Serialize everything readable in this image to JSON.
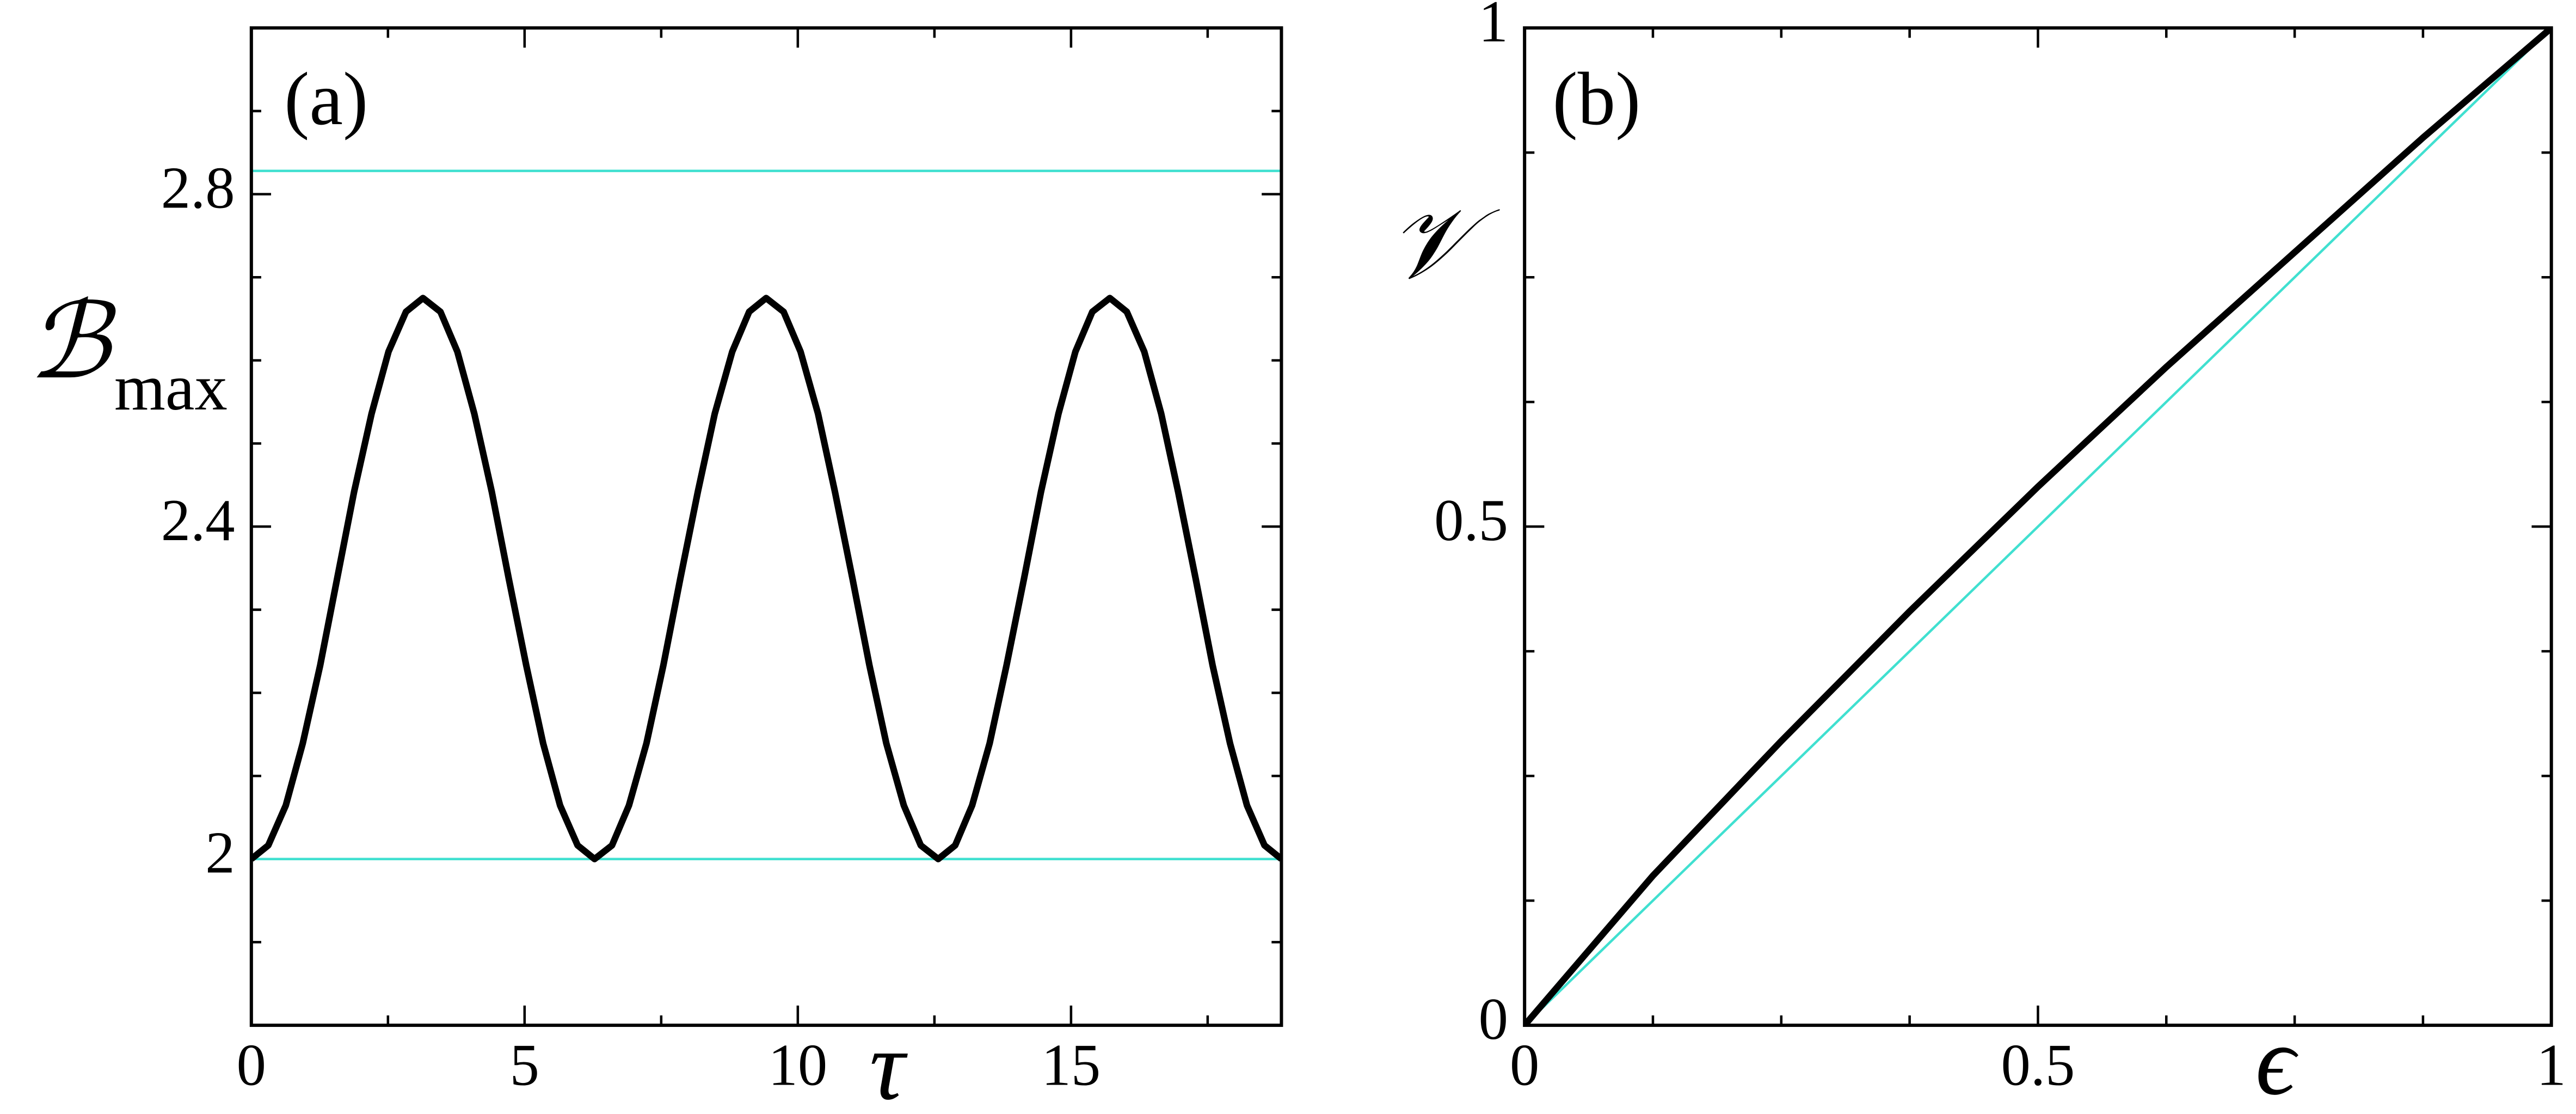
{
  "chart_data": [
    {
      "type": "line",
      "panel_label": "(a)",
      "xlabel": "τ",
      "ylabel": "ℬ",
      "ylabel_sub": "max",
      "xlim": [
        0,
        18.85
      ],
      "ylim": [
        1.8,
        3.0
      ],
      "xticks": [
        0,
        5,
        10,
        15
      ],
      "yticks": [
        2.0,
        2.4,
        2.8
      ],
      "xminorticks": [
        2.5,
        7.5,
        12.5,
        17.5
      ],
      "yminorticks": [
        1.9,
        2.1,
        2.2,
        2.3,
        2.5,
        2.6,
        2.7,
        2.9
      ],
      "series": [
        {
          "color": "#40e0d0",
          "width": 1.5,
          "x": [
            0,
            18.85
          ],
          "values": [
            2.828,
            2.828
          ]
        },
        {
          "color": "#40e0d0",
          "width": 1.5,
          "x": [
            0,
            18.85
          ],
          "values": [
            2.0,
            2.0
          ]
        },
        {
          "color": "#000000",
          "width": 4,
          "x": [
            0,
            0.31,
            0.63,
            0.94,
            1.26,
            1.57,
            1.88,
            2.2,
            2.51,
            2.83,
            3.14,
            3.46,
            3.77,
            4.08,
            4.4,
            4.71,
            5.03,
            5.34,
            5.65,
            5.97,
            6.28,
            6.6,
            6.91,
            7.23,
            7.54,
            7.85,
            8.17,
            8.48,
            8.8,
            9.11,
            9.42,
            9.74,
            10.05,
            10.37,
            10.68,
            11.0,
            11.31,
            11.62,
            11.94,
            12.25,
            12.57,
            12.88,
            13.19,
            13.51,
            13.82,
            14.14,
            14.45,
            14.77,
            15.08,
            15.39,
            15.71,
            16.02,
            16.34,
            16.65,
            16.96,
            17.28,
            17.59,
            17.91,
            18.22,
            18.54,
            18.85
          ],
          "values": [
            2.0,
            2.0165,
            2.0645,
            2.1391,
            2.2332,
            2.3375,
            2.4418,
            2.5359,
            2.6105,
            2.6585,
            2.675,
            2.6585,
            2.6105,
            2.5359,
            2.4418,
            2.3375,
            2.2332,
            2.1391,
            2.0645,
            2.0165,
            2.0,
            2.0165,
            2.0645,
            2.1391,
            2.2332,
            2.3375,
            2.4418,
            2.5359,
            2.6105,
            2.6585,
            2.675,
            2.6585,
            2.6105,
            2.5359,
            2.4418,
            2.3375,
            2.2332,
            2.1391,
            2.0645,
            2.0165,
            2.0,
            2.0165,
            2.0645,
            2.1391,
            2.2332,
            2.3375,
            2.4418,
            2.5359,
            2.6105,
            2.6585,
            2.675,
            2.6585,
            2.6105,
            2.5359,
            2.4418,
            2.3375,
            2.2332,
            2.1391,
            2.0645,
            2.0165,
            2.0
          ]
        }
      ]
    },
    {
      "type": "line",
      "panel_label": "(b)",
      "xlabel": "ϵ",
      "ylabel": "𝒱",
      "xlim": [
        0,
        1
      ],
      "ylim": [
        0,
        1
      ],
      "xticks": [
        0,
        0.5,
        1
      ],
      "yticks": [
        0,
        0.5,
        1
      ],
      "xminorticks": [
        0.125,
        0.25,
        0.375,
        0.625,
        0.75,
        0.875
      ],
      "yminorticks": [
        0.125,
        0.25,
        0.375,
        0.625,
        0.75,
        0.875
      ],
      "series": [
        {
          "color": "#40e0d0",
          "width": 1.5,
          "x": [
            0,
            1
          ],
          "values": [
            0,
            1
          ]
        },
        {
          "color": "#000000",
          "width": 4,
          "x": [
            0,
            0.125,
            0.25,
            0.375,
            0.5,
            0.625,
            0.75,
            0.875,
            1
          ],
          "values": [
            0,
            0.15,
            0.285,
            0.415,
            0.54,
            0.66,
            0.775,
            0.89,
            1
          ]
        }
      ]
    }
  ]
}
